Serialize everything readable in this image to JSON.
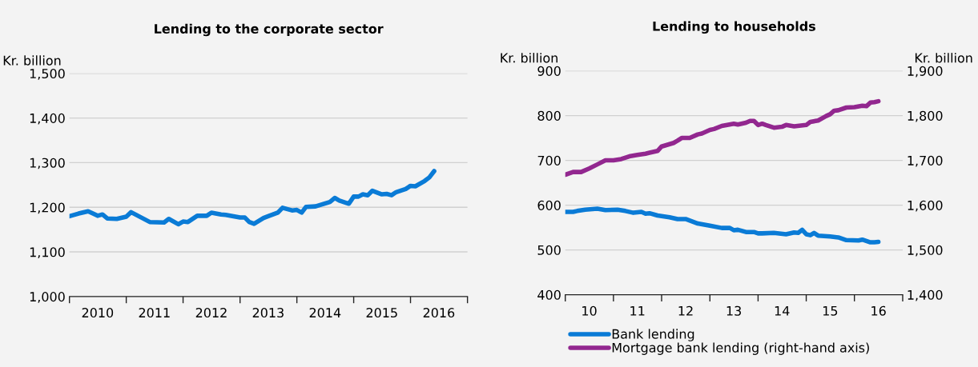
{
  "chart_data": [
    {
      "type": "line",
      "title": "Lending to the corporate sector",
      "ylabel": "Kr. billion",
      "series": [
        {
          "color": "#0a7bd6",
          "x": [
            "2010-01",
            "2010-03",
            "2010-05",
            "2010-06",
            "2010-07",
            "2010-08",
            "2010-09",
            "2010-11",
            "2011-01",
            "2011-02",
            "2011-06",
            "2011-09",
            "2011-10",
            "2011-12",
            "2012-01",
            "2012-02",
            "2012-04",
            "2012-06",
            "2012-07",
            "2012-09",
            "2012-10",
            "2013-01",
            "2013-02",
            "2013-03",
            "2013-04",
            "2013-06",
            "2013-07",
            "2013-09",
            "2013-10",
            "2013-12",
            "2014-01",
            "2014-02",
            "2014-03",
            "2014-05",
            "2014-08",
            "2014-09",
            "2014-10",
            "2014-12",
            "2015-01",
            "2015-02",
            "2015-03",
            "2015-04",
            "2015-05",
            "2015-07",
            "2015-08",
            "2015-09",
            "2015-10",
            "2015-12",
            "2016-01",
            "2016-02",
            "2016-04",
            "2016-05",
            "2016-06"
          ],
          "values": [
            1180,
            1186,
            1191,
            1186,
            1181,
            1184,
            1175,
            1174,
            1179,
            1189,
            1167,
            1166,
            1174,
            1162,
            1168,
            1167,
            1181,
            1181,
            1188,
            1184,
            1183,
            1177,
            1177,
            1167,
            1163,
            1176,
            1180,
            1188,
            1199,
            1193,
            1194,
            1188,
            1201,
            1202,
            1212,
            1221,
            1215,
            1208,
            1224,
            1224,
            1229,
            1227,
            1237,
            1229,
            1230,
            1227,
            1234,
            1241,
            1248,
            1247,
            1259,
            1267,
            1281
          ]
        }
      ],
      "xlim": [
        "2010-01-01",
        "2017-01-01"
      ],
      "xticks": [
        {
          "value": "2010-01-01",
          "label": null
        },
        {
          "value": "2011-01-01",
          "label": null
        },
        {
          "value": "2012-01-01",
          "label": null
        },
        {
          "value": "2013-01-01",
          "label": null
        },
        {
          "value": "2014-01-01",
          "label": null
        },
        {
          "value": "2015-01-01",
          "label": null
        },
        {
          "value": "2016-01-01",
          "label": null
        },
        {
          "value": "2017-01-01",
          "label": null
        },
        {
          "value": "2010-07-01",
          "label": "2010"
        },
        {
          "value": "2011-07-01",
          "label": "2011"
        },
        {
          "value": "2012-07-01",
          "label": "2012"
        },
        {
          "value": "2013-07-01",
          "label": "2013"
        },
        {
          "value": "2014-07-01",
          "label": "2014"
        },
        {
          "value": "2015-07-01",
          "label": "2015"
        },
        {
          "value": "2016-07-01",
          "label": "2016"
        }
      ],
      "ylim": [
        1000,
        1500
      ],
      "yticks": [
        {
          "value": 1000,
          "label": "1,000"
        },
        {
          "value": 1100,
          "label": "1,100"
        },
        {
          "value": 1200,
          "label": "1,200"
        },
        {
          "value": 1300,
          "label": "1,300"
        },
        {
          "value": 1400,
          "label": "1,400"
        },
        {
          "value": 1500,
          "label": "1,500"
        }
      ],
      "grid": "y",
      "legend": false
    },
    {
      "type": "line",
      "title": "Lending to households",
      "ylabel": "Kr. billion",
      "y2label": "Kr. billion",
      "series": [
        {
          "name": "Bank lending",
          "color": "#0a7bd6",
          "x": [
            "2010-01",
            "2010-03",
            "2010-04",
            "2010-06",
            "2010-09",
            "2010-11",
            "2011-02",
            "2011-04",
            "2011-06",
            "2011-08",
            "2011-09",
            "2011-10",
            "2011-12",
            "2012-03",
            "2012-05",
            "2012-07",
            "2012-10",
            "2013-01",
            "2013-04",
            "2013-06",
            "2013-07",
            "2013-08",
            "2013-10",
            "2013-12",
            "2014-01",
            "2014-02",
            "2014-05",
            "2014-08",
            "2014-10",
            "2014-11",
            "2014-12",
            "2015-01",
            "2015-02",
            "2015-03",
            "2015-04",
            "2015-07",
            "2015-09",
            "2015-11",
            "2016-02",
            "2016-03",
            "2016-05",
            "2016-06",
            "2016-07"
          ],
          "values": [
            585,
            585,
            587,
            590,
            592,
            589,
            590,
            587,
            583,
            585,
            581,
            582,
            577,
            573,
            569,
            569,
            559,
            554,
            549,
            549,
            544,
            545,
            540,
            540,
            537,
            537,
            538,
            535,
            539,
            538,
            545,
            535,
            533,
            538,
            532,
            530,
            528,
            522,
            521,
            523,
            517,
            517,
            518
          ]
        },
        {
          "name": "Mortgage bank lending (right-hand axis)",
          "color": "#92278f",
          "axis": "y2",
          "x": [
            "2010-01",
            "2010-03",
            "2010-05",
            "2010-07",
            "2010-09",
            "2010-11",
            "2011-01",
            "2011-03",
            "2011-05",
            "2011-07",
            "2011-09",
            "2011-10",
            "2011-12",
            "2012-01",
            "2012-04",
            "2012-05",
            "2012-06",
            "2012-08",
            "2012-10",
            "2012-11",
            "2013-01",
            "2013-02",
            "2013-04",
            "2013-07",
            "2013-08",
            "2013-10",
            "2013-11",
            "2013-12",
            "2014-01",
            "2014-02",
            "2014-03",
            "2014-05",
            "2014-07",
            "2014-08",
            "2014-10",
            "2015-01",
            "2015-02",
            "2015-04",
            "2015-06",
            "2015-07",
            "2015-08",
            "2015-09",
            "2015-11",
            "2016-01",
            "2016-03",
            "2016-04",
            "2016-05",
            "2016-06",
            "2016-07"
          ],
          "values": [
            1668,
            1674,
            1674,
            1682,
            1691,
            1700,
            1700,
            1703,
            1709,
            1712,
            1715,
            1717,
            1721,
            1731,
            1739,
            1744,
            1750,
            1750,
            1758,
            1760,
            1768,
            1770,
            1777,
            1782,
            1780,
            1784,
            1788,
            1788,
            1779,
            1782,
            1779,
            1773,
            1775,
            1779,
            1776,
            1779,
            1786,
            1789,
            1799,
            1803,
            1811,
            1812,
            1818,
            1819,
            1822,
            1821,
            1829,
            1830,
            1832
          ]
        }
      ],
      "xlim": [
        "2010-01-01",
        "2017-01-01"
      ],
      "xticks": [
        {
          "value": "2010-01-01",
          "label": null
        },
        {
          "value": "2011-01-01",
          "label": null
        },
        {
          "value": "2012-01-01",
          "label": null
        },
        {
          "value": "2013-01-01",
          "label": null
        },
        {
          "value": "2014-01-01",
          "label": null
        },
        {
          "value": "2015-01-01",
          "label": null
        },
        {
          "value": "2016-01-01",
          "label": null
        },
        {
          "value": "2017-01-01",
          "label": null
        },
        {
          "value": "2010-07-01",
          "label": "10"
        },
        {
          "value": "2011-07-01",
          "label": "11"
        },
        {
          "value": "2012-07-01",
          "label": "12"
        },
        {
          "value": "2013-07-01",
          "label": "13"
        },
        {
          "value": "2014-07-01",
          "label": "14"
        },
        {
          "value": "2015-07-01",
          "label": "15"
        },
        {
          "value": "2016-07-01",
          "label": "16"
        }
      ],
      "ylim": [
        400,
        900
      ],
      "yticks": [
        400,
        500,
        600,
        700,
        800,
        900
      ],
      "y2lim": [
        1400,
        1900
      ],
      "y2ticks": [
        {
          "value": 1400,
          "label": "1,400"
        },
        {
          "value": 1500,
          "label": "1,500"
        },
        {
          "value": 1600,
          "label": "1,600"
        },
        {
          "value": 1700,
          "label": "1,700"
        },
        {
          "value": 1800,
          "label": "1,800"
        },
        {
          "value": 1900,
          "label": "1,900"
        }
      ],
      "grid": "y",
      "legend": "bottom"
    }
  ]
}
